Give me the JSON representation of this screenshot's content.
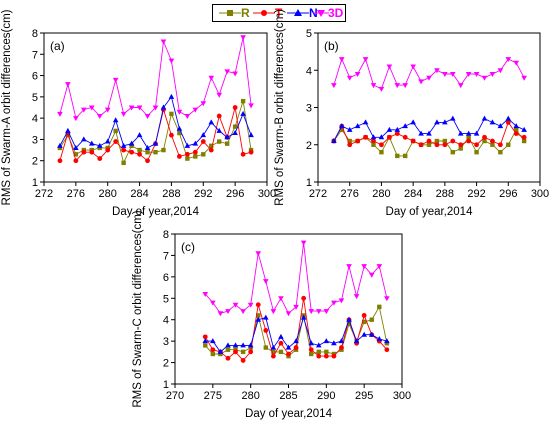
{
  "chart_data": {
    "legend": [
      {
        "name": "R",
        "color": "#808000",
        "marker": "square"
      },
      {
        "name": "T",
        "color": "#ff0000",
        "marker": "circle"
      },
      {
        "name": "N",
        "color": "#0000ff",
        "marker": "triangle"
      },
      {
        "name": "3D",
        "color": "#ff00ff",
        "marker": "down-triangle"
      }
    ],
    "panels": [
      {
        "type": "line",
        "panel_label": "(a)",
        "xlabel": "Day of year,2014",
        "ylabel": "RMS of Swarm-A orbit differences(cm)",
        "xlim": [
          272,
          300
        ],
        "ylim": [
          1,
          8
        ],
        "xticks": [
          272,
          276,
          280,
          284,
          288,
          292,
          296,
          300
        ],
        "yticks": [
          1,
          2,
          3,
          4,
          5,
          6,
          7,
          8
        ],
        "x": [
          274,
          275,
          276,
          277,
          278,
          279,
          280,
          281,
          282,
          283,
          284,
          285,
          286,
          287,
          288,
          289,
          290,
          291,
          292,
          293,
          294,
          295,
          296,
          297,
          298
        ],
        "series": [
          {
            "name": "R",
            "values": [
              2.6,
              3.2,
              2.3,
              2.5,
              2.5,
              2.6,
              2.6,
              3.4,
              1.9,
              2.7,
              2.5,
              2.4,
              2.4,
              2.5,
              4.2,
              3.3,
              2.1,
              2.2,
              2.3,
              2.7,
              2.9,
              2.8,
              3.6,
              4.8,
              2.5
            ]
          },
          {
            "name": "T",
            "values": [
              2.0,
              3.3,
              2.0,
              2.4,
              2.4,
              2.1,
              2.5,
              2.9,
              2.5,
              2.4,
              2.3,
              2.0,
              2.8,
              4.4,
              3.2,
              2.2,
              2.3,
              2.4,
              2.9,
              2.5,
              4.1,
              3.1,
              4.5,
              2.3,
              2.4
            ]
          },
          {
            "name": "N",
            "values": [
              2.7,
              3.4,
              2.6,
              3.0,
              2.8,
              2.7,
              2.9,
              3.9,
              2.7,
              2.8,
              3.2,
              2.6,
              2.8,
              4.5,
              5.0,
              3.5,
              2.7,
              2.8,
              3.2,
              3.8,
              3.4,
              3.1,
              3.3,
              4.2,
              3.2
            ]
          },
          {
            "name": "3D",
            "values": [
              4.2,
              5.6,
              4.0,
              4.4,
              4.5,
              4.1,
              4.4,
              5.8,
              4.2,
              4.5,
              4.5,
              4.1,
              4.5,
              7.6,
              6.7,
              4.3,
              4.1,
              4.4,
              4.7,
              5.9,
              5.1,
              6.2,
              6.1,
              7.8,
              4.6
            ]
          }
        ]
      },
      {
        "type": "line",
        "panel_label": "(b)",
        "xlabel": "Day of year,2014",
        "ylabel": "RMS of Swarm-B orbit differences(cm)",
        "xlim": [
          272,
          300
        ],
        "ylim": [
          1,
          5
        ],
        "xticks": [
          272,
          276,
          280,
          284,
          288,
          292,
          296,
          300
        ],
        "yticks": [
          1,
          2,
          3,
          4,
          5
        ],
        "x": [
          274,
          275,
          276,
          277,
          278,
          279,
          280,
          281,
          282,
          283,
          284,
          285,
          286,
          287,
          288,
          289,
          290,
          291,
          292,
          293,
          294,
          295,
          296,
          297,
          298
        ],
        "series": [
          {
            "name": "R",
            "values": [
              2.1,
              2.4,
              2.1,
              2.1,
              2.2,
              2.0,
              1.8,
              2.2,
              1.7,
              1.7,
              2.1,
              2.0,
              2.0,
              2.1,
              2.1,
              1.8,
              1.9,
              2.2,
              1.8,
              2.1,
              2.0,
              1.8,
              2.0,
              2.4,
              2.1
            ]
          },
          {
            "name": "T",
            "values": [
              2.1,
              2.5,
              2.0,
              2.1,
              2.2,
              2.1,
              2.0,
              2.2,
              2.3,
              2.2,
              2.1,
              2.0,
              2.1,
              2.0,
              2.0,
              2.1,
              2.0,
              2.1,
              2.0,
              2.2,
              2.1,
              2.0,
              2.6,
              2.3,
              2.2
            ]
          },
          {
            "name": "N",
            "values": [
              2.1,
              2.5,
              2.4,
              2.5,
              2.6,
              2.2,
              2.2,
              2.4,
              2.4,
              2.5,
              2.6,
              2.3,
              2.3,
              2.6,
              2.6,
              2.7,
              2.3,
              2.3,
              2.3,
              2.7,
              2.6,
              2.5,
              2.7,
              2.5,
              2.4
            ]
          },
          {
            "name": "3D",
            "values": [
              3.6,
              4.3,
              3.8,
              3.9,
              4.3,
              3.6,
              3.5,
              4.1,
              3.6,
              3.6,
              4.1,
              3.7,
              3.8,
              4.0,
              3.9,
              3.9,
              3.6,
              3.9,
              3.9,
              3.8,
              3.9,
              4.0,
              4.3,
              4.2,
              3.8
            ]
          }
        ]
      },
      {
        "type": "line",
        "panel_label": "(c)",
        "xlabel": "Day of year,2014",
        "ylabel": "RMS of Swarm-C orbit differences(cm)",
        "xlim": [
          270,
          300
        ],
        "ylim": [
          1,
          8
        ],
        "xticks": [
          270,
          275,
          280,
          285,
          290,
          295,
          300
        ],
        "yticks": [
          1,
          2,
          3,
          4,
          5,
          6,
          7,
          8
        ],
        "x": [
          274,
          275,
          276,
          277,
          278,
          279,
          280,
          281,
          282,
          283,
          284,
          285,
          286,
          287,
          288,
          289,
          290,
          291,
          292,
          293,
          294,
          295,
          296,
          297,
          298
        ],
        "series": [
          {
            "name": "R",
            "values": [
              2.8,
              2.4,
              2.4,
              2.6,
              2.6,
              2.5,
              2.7,
              4.2,
              2.7,
              2.5,
              2.5,
              2.3,
              2.6,
              4.2,
              2.4,
              2.5,
              2.5,
              2.4,
              2.6,
              3.8,
              3.0,
              3.9,
              4.0,
              4.6,
              2.9
            ]
          },
          {
            "name": "T",
            "values": [
              3.2,
              2.6,
              2.5,
              2.2,
              2.5,
              2.1,
              2.5,
              4.7,
              3.5,
              2.3,
              2.9,
              2.4,
              2.7,
              5.0,
              2.6,
              2.3,
              2.3,
              2.3,
              2.7,
              4.0,
              2.9,
              4.2,
              3.3,
              3.0,
              2.6
            ]
          },
          {
            "name": "N",
            "values": [
              3.0,
              3.0,
              2.5,
              2.8,
              2.8,
              2.8,
              2.8,
              4.0,
              4.1,
              2.7,
              3.2,
              2.7,
              3.0,
              4.1,
              2.9,
              2.8,
              3.0,
              2.9,
              3.0,
              4.0,
              3.0,
              3.3,
              3.3,
              3.1,
              3.0
            ]
          },
          {
            "name": "3D",
            "values": [
              5.2,
              4.8,
              4.3,
              4.4,
              4.7,
              4.4,
              4.7,
              7.1,
              5.8,
              4.4,
              5.0,
              4.3,
              4.6,
              7.6,
              4.4,
              4.4,
              4.4,
              4.8,
              4.9,
              6.5,
              5.1,
              6.5,
              6.1,
              6.5,
              5.0
            ]
          }
        ]
      }
    ]
  }
}
